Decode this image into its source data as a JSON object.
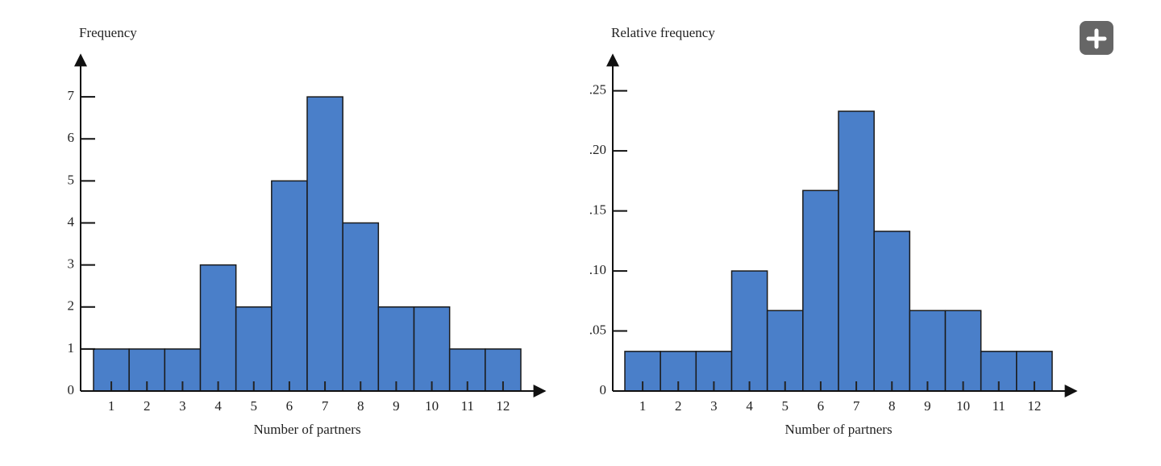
{
  "chart_data": [
    {
      "type": "bar",
      "y_label": "Frequency",
      "x_label": "Number of partners",
      "categories": [
        "1",
        "2",
        "3",
        "4",
        "5",
        "6",
        "7",
        "8",
        "9",
        "10",
        "11",
        "12"
      ],
      "values": [
        1,
        1,
        1,
        3,
        2,
        5,
        7,
        4,
        2,
        2,
        1,
        1
      ],
      "color": "#4a7fc9",
      "ylim": [
        0,
        8
      ],
      "yticks": [
        0,
        1,
        2,
        3,
        4,
        5,
        6,
        7
      ]
    },
    {
      "type": "bar",
      "y_label": "Relative frequency",
      "x_label": "Number of partners",
      "categories": [
        "1",
        "2",
        "3",
        "4",
        "5",
        "6",
        "7",
        "8",
        "9",
        "10",
        "11",
        "12"
      ],
      "values": [
        0.033,
        0.033,
        0.033,
        0.1,
        0.067,
        0.167,
        0.233,
        0.133,
        0.067,
        0.067,
        0.033,
        0.033
      ],
      "color": "#4a7fc9",
      "ylim": [
        0,
        0.28
      ],
      "yticks": [
        0,
        {
          "value": 0.05,
          "label": ".05"
        },
        {
          "value": 0.1,
          "label": ".10"
        },
        {
          "value": 0.15,
          "label": ".15"
        },
        {
          "value": 0.2,
          "label": ".20"
        },
        {
          "value": 0.25,
          "label": ".25"
        }
      ]
    }
  ]
}
